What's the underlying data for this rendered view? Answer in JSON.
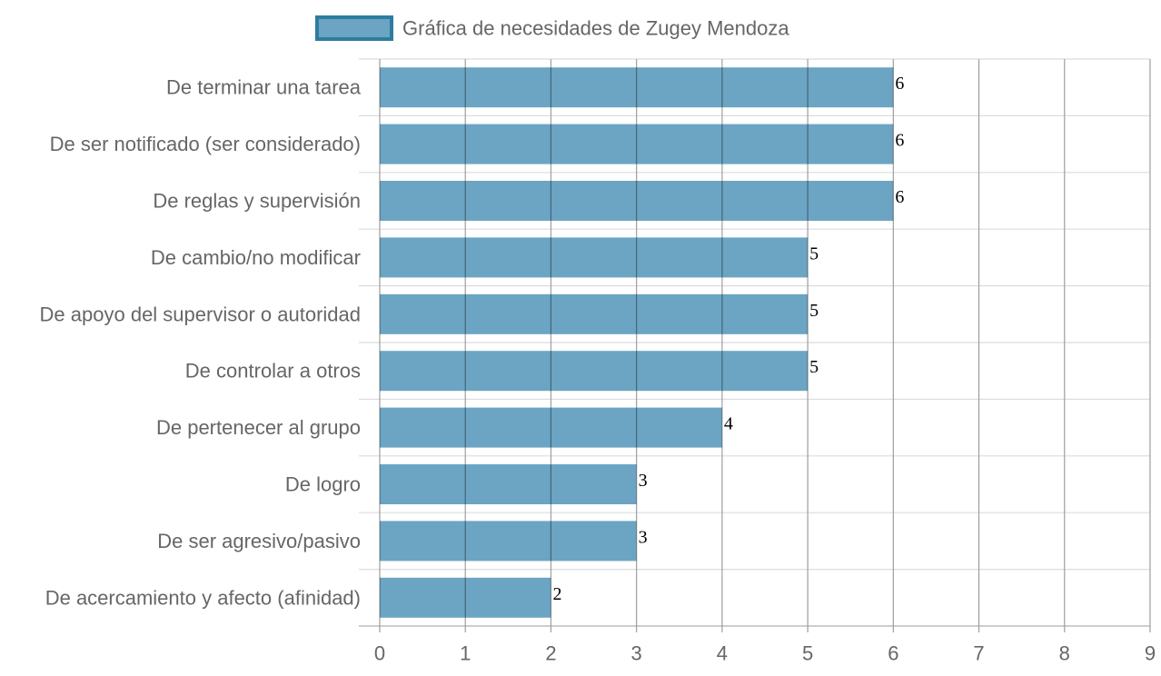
{
  "chart_data": {
    "type": "bar",
    "orientation": "horizontal",
    "categories": [
      "De terminar una tarea",
      "De ser notificado (ser considerado)",
      "De reglas y supervisión",
      "De cambio/no modificar",
      "De apoyo del supervisor o autoridad",
      "De controlar a otros",
      "De pertenecer al grupo",
      "De logro",
      "De ser agresivo/pasivo",
      "De acercamiento y afecto (afinidad)"
    ],
    "series": [
      {
        "name": "Gráfica de necesidades de Zugey Mendoza",
        "values": [
          6,
          6,
          6,
          5,
          5,
          5,
          4,
          3,
          3,
          2
        ]
      }
    ],
    "xlim": [
      0,
      9
    ],
    "x_ticks": [
      0,
      1,
      2,
      3,
      4,
      5,
      6,
      7,
      8,
      9
    ],
    "grid": true,
    "legend_position": "top",
    "colors": {
      "bar_fill": "#6ba5c3",
      "legend_fill": "#6ba5c3",
      "legend_border": "#2e7ca0",
      "label_text": "#666666",
      "value_text": "#000000"
    }
  }
}
